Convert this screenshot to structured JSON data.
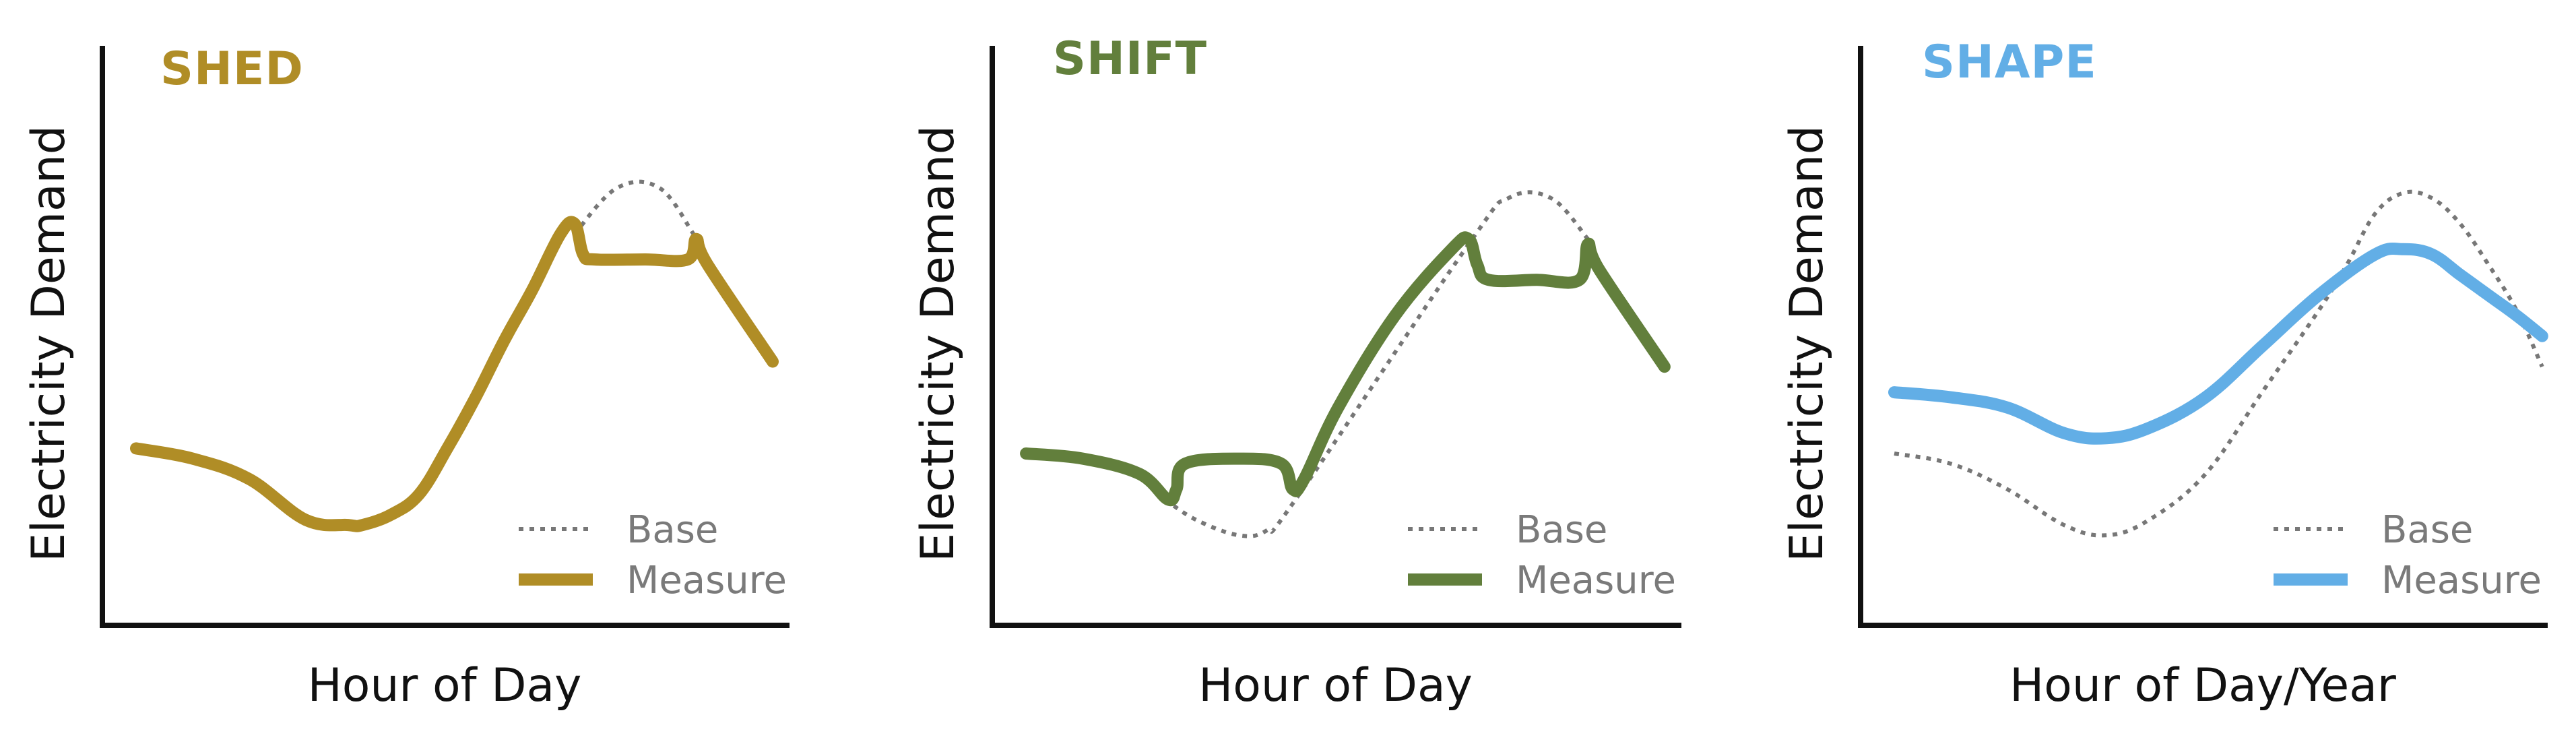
{
  "chart_data": [
    {
      "type": "line",
      "title": "SHED",
      "title_color": "#b08d26",
      "xlabel": "Hour of Day",
      "ylabel": "Electricity Demand",
      "grid": false,
      "legend_position": "bottom-right",
      "xlim": [
        0,
        24
      ],
      "ylim": [
        0,
        100
      ],
      "series": [
        {
          "name": "Base",
          "style": "dotted",
          "color": "#777777",
          "x": [
            16.5,
            18.0,
            19.5,
            20.7
          ],
          "y": [
            74,
            83,
            83,
            74
          ]
        },
        {
          "name": "Measure",
          "style": "solid",
          "color": "#b08d26",
          "x": [
            1,
            3,
            5,
            7,
            8.5,
            9,
            10,
            11,
            12,
            13,
            14,
            15,
            16,
            16.5,
            16.8,
            17.2,
            19,
            20.5,
            20.8,
            21.2,
            23.5
          ],
          "y": [
            32,
            30,
            26,
            18,
            17,
            17,
            19,
            23,
            32,
            42,
            53,
            63,
            74,
            76,
            70,
            69,
            69,
            69,
            73,
            68,
            49
          ]
        }
      ]
    },
    {
      "type": "line",
      "title": "SHIFT",
      "title_color": "#627f3c",
      "xlabel": "Hour of Day",
      "ylabel": "Electricity Demand",
      "grid": false,
      "legend_position": "bottom-right",
      "xlim": [
        0,
        24
      ],
      "ylim": [
        0,
        100
      ],
      "series": [
        {
          "name": "Base",
          "style": "dotted",
          "color": "#777777",
          "x": [
            5.9,
            7,
            8.5,
            9.5,
            10.5,
            16.6,
            18,
            19.5,
            20.8
          ],
          "y": [
            22,
            18,
            15,
            16,
            22,
            72,
            81,
            81,
            73
          ]
        },
        {
          "name": "Measure",
          "style": "solid",
          "color": "#627f3c",
          "x": [
            1,
            3,
            5,
            6,
            6.3,
            6.6,
            8.5,
            10,
            10.4,
            10.8,
            12,
            14,
            16,
            16.6,
            16.9,
            17.3,
            19,
            20.5,
            20.8,
            21.2,
            23.5
          ],
          "y": [
            31,
            30,
            27,
            22,
            24,
            29,
            30,
            29,
            24,
            26,
            40,
            58,
            71,
            73,
            68,
            65,
            65,
            65,
            72,
            67,
            48
          ]
        }
      ]
    },
    {
      "type": "line",
      "title": "SHAPE",
      "title_color": "#62aee6",
      "xlabel": "Hour of Day/Year",
      "ylabel": "Electricity Demand",
      "grid": false,
      "legend_position": "bottom-right",
      "xlim": [
        0,
        24
      ],
      "ylim": [
        0,
        100
      ],
      "series": [
        {
          "name": "Base",
          "style": "dotted",
          "color": "#777777",
          "x": [
            1,
            3,
            5,
            7,
            8.5,
            10,
            12,
            14,
            16,
            17,
            18,
            19,
            20,
            21,
            22,
            23,
            23.9
          ],
          "y": [
            31,
            29,
            24,
            17,
            15,
            18,
            27,
            43,
            59,
            68,
            78,
            82,
            81,
            76,
            68,
            59,
            48
          ]
        },
        {
          "name": "Measure",
          "style": "solid",
          "color": "#62aee6",
          "x": [
            1,
            3,
            5,
            7,
            8.5,
            10,
            12,
            14,
            16,
            18,
            19,
            20,
            21,
            22,
            23,
            23.9
          ],
          "y": [
            43,
            42,
            40,
            35,
            34,
            36,
            42,
            52,
            62,
            70,
            71,
            70,
            66,
            62,
            58,
            54
          ]
        }
      ]
    }
  ]
}
